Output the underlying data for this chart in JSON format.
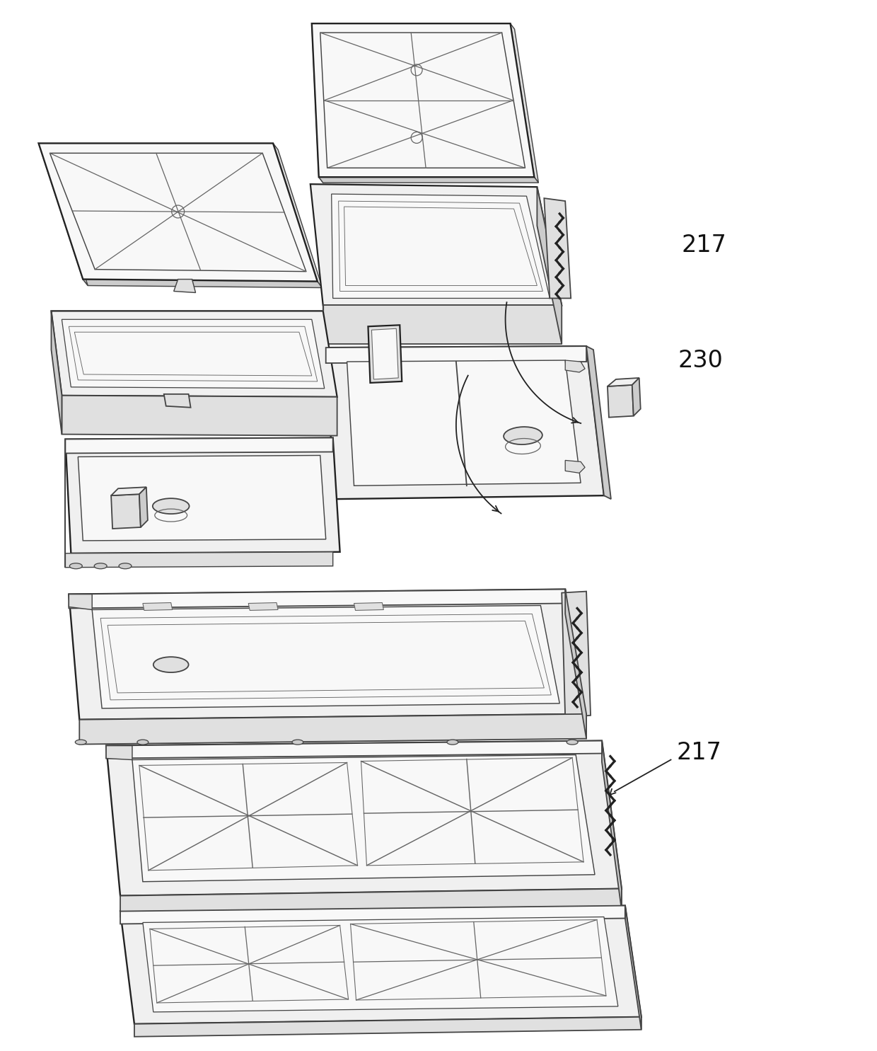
{
  "bg_color": "#ffffff",
  "lc": "#444444",
  "lc_dark": "#222222",
  "lc_thin": "#666666",
  "lw": 1.3,
  "figsize": [
    12.4,
    14.85
  ],
  "dpi": 100,
  "fc_light": "#f0f0f0",
  "fc_mid": "#e0e0e0",
  "fc_dark": "#cccccc",
  "fc_white": "#f8f8f8"
}
